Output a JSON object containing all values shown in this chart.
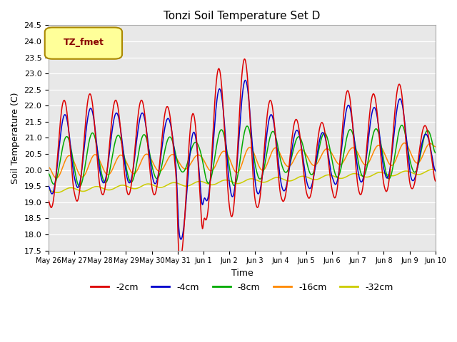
{
  "title": "Tonzi Soil Temperature Set D",
  "xlabel": "Time",
  "ylabel": "Soil Temperature (C)",
  "ylim": [
    17.5,
    24.5
  ],
  "yticks": [
    17.5,
    18.0,
    18.5,
    19.0,
    19.5,
    20.0,
    20.5,
    21.0,
    21.5,
    22.0,
    22.5,
    23.0,
    23.5,
    24.0,
    24.5
  ],
  "xtick_labels": [
    "May 26",
    "May 27",
    "May 28",
    "May 29",
    "May 30",
    "May 31",
    "Jun 1",
    "Jun 2",
    "Jun 3",
    "Jun 4",
    "Jun 5",
    "Jun 6",
    "Jun 7",
    "Jun 8",
    "Jun 9",
    "Jun 10"
  ],
  "series_colors": [
    "#dd0000",
    "#0000cc",
    "#00aa00",
    "#ff8800",
    "#cccc00"
  ],
  "series_labels": [
    "-2cm",
    "-4cm",
    "-8cm",
    "-16cm",
    "-32cm"
  ],
  "legend_label": "TZ_fmet",
  "legend_box_color": "#ffff99",
  "legend_box_edge": "#aa8800",
  "plot_bg_color": "#e8e8e8",
  "n_days": 15
}
